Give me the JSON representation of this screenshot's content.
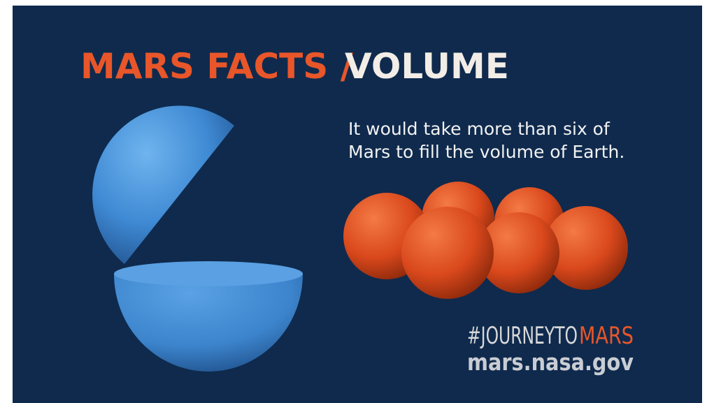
{
  "header": {
    "title_prefix": "MARS FACTS /",
    "title_topic": "VOLUME"
  },
  "caption": {
    "lines": [
      "It would take more than six of",
      "Mars to fill the volume of Earth."
    ]
  },
  "footer": {
    "hashtag": "#JOURNEYTO",
    "hashtag_accent": "MARS",
    "url": "mars.nasa.gov"
  }
}
